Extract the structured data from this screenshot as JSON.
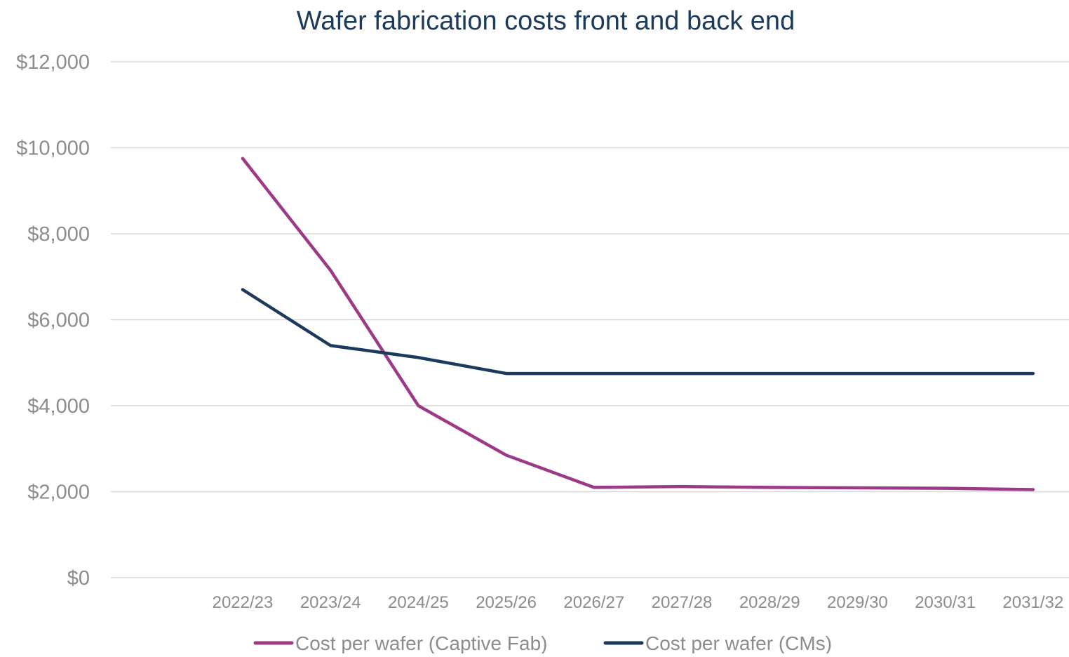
{
  "chart_data": {
    "type": "line",
    "title": "Wafer fabrication costs front and back end",
    "xlabel": "",
    "ylabel": "",
    "categories": [
      "2022/23",
      "2023/24",
      "2024/25",
      "2025/26",
      "2026/27",
      "2027/28",
      "2028/29",
      "2029/30",
      "2030/31",
      "2031/32"
    ],
    "ylim": [
      0,
      12000
    ],
    "yticks": [
      0,
      2000,
      4000,
      6000,
      8000,
      10000,
      12000
    ],
    "ytick_labels": [
      "$0",
      "$2,000",
      "$4,000",
      "$6,000",
      "$8,000",
      "$10,000",
      "$12,000"
    ],
    "grid": true,
    "legend_position": "bottom",
    "series": [
      {
        "name": "Cost per wafer (Captive Fab)",
        "color": "#9c3a87",
        "values": [
          9750,
          7150,
          4000,
          2850,
          2100,
          2120,
          2100,
          2090,
          2080,
          2050
        ]
      },
      {
        "name": "Cost per wafer (CMs)",
        "color": "#1b3a5c",
        "values": [
          6700,
          5400,
          5120,
          4750,
          4750,
          4750,
          4750,
          4750,
          4750,
          4750
        ]
      }
    ]
  }
}
